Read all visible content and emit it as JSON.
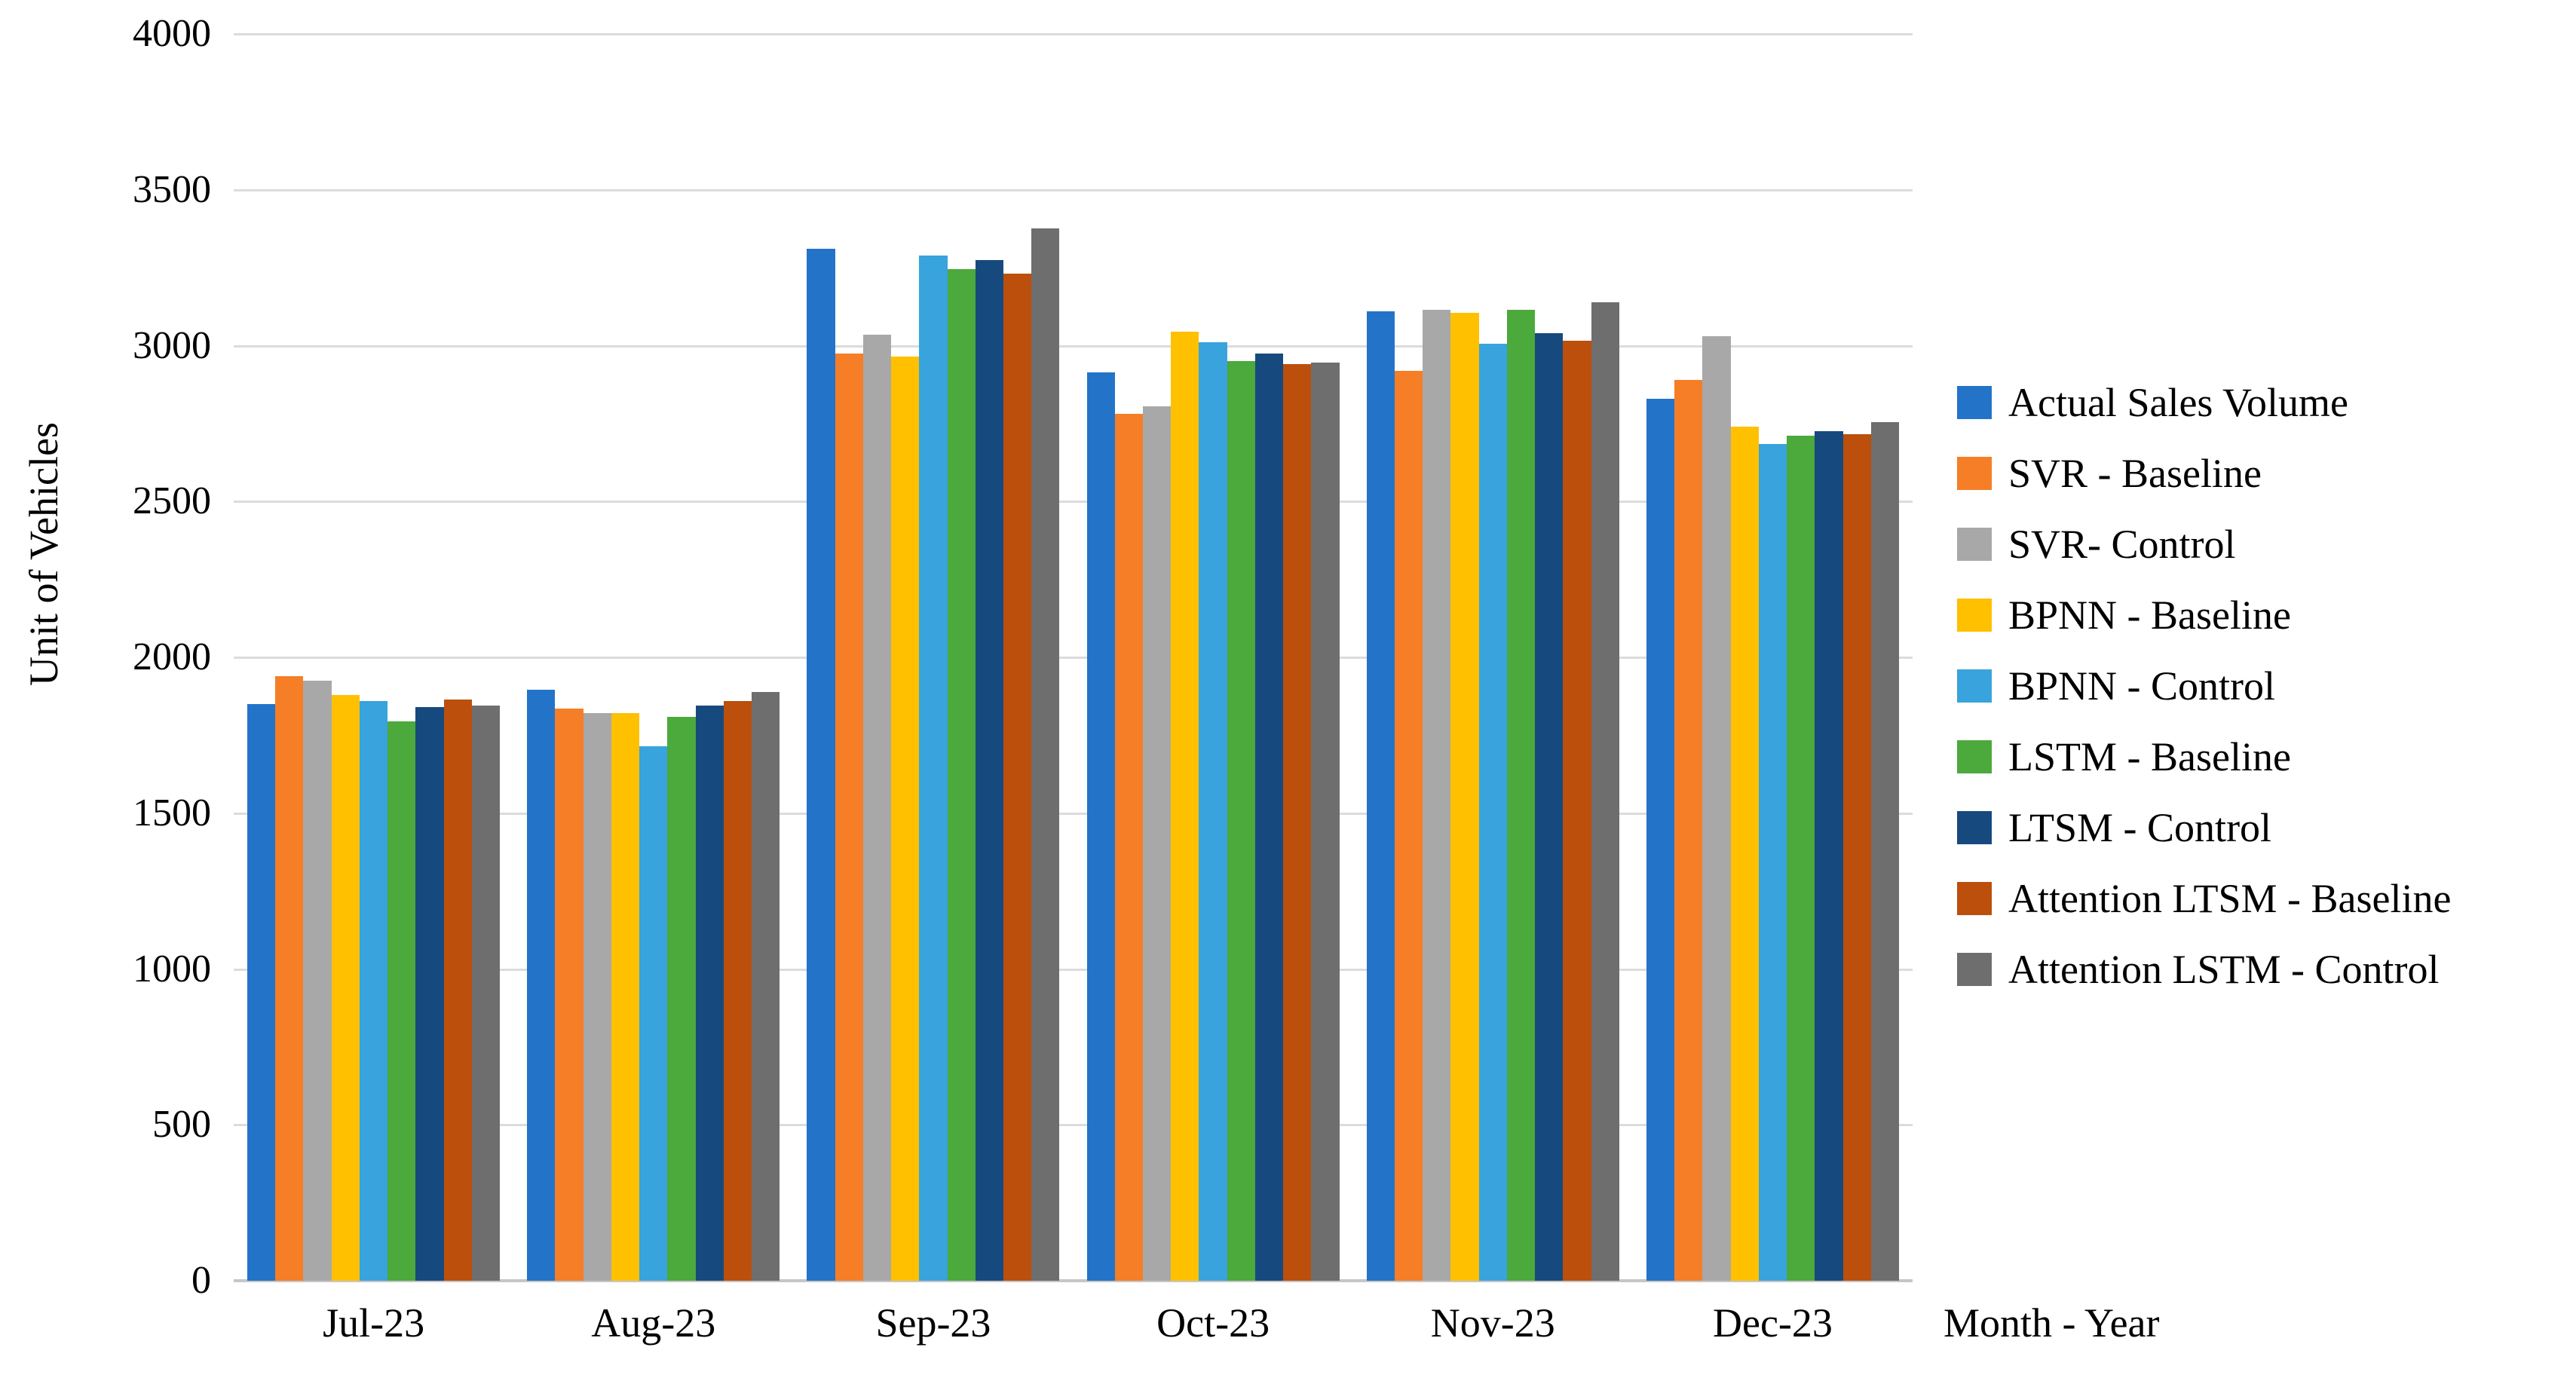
{
  "chart_data": {
    "type": "bar",
    "title": "",
    "xlabel": "Month - Year",
    "ylabel": "Unit of Vehicles",
    "ylim": [
      0,
      4000
    ],
    "yticks": [
      0,
      500,
      1000,
      1500,
      2000,
      2500,
      3000,
      3500,
      4000
    ],
    "grid": "horizontal",
    "legend_position": "right",
    "categories": [
      "Jul-23",
      "Aug-23",
      "Sep-23",
      "Oct-23",
      "Nov-23",
      "Dec-23"
    ],
    "series": [
      {
        "name": "Actual Sales Volume",
        "color": "#2374c9",
        "values": [
          1850,
          1895,
          3310,
          2915,
          3110,
          2830
        ]
      },
      {
        "name": "SVR - Baseline",
        "color": "#f57e27",
        "values": [
          1940,
          1835,
          2975,
          2780,
          2920,
          2890
        ]
      },
      {
        "name": "SVR- Control",
        "color": "#a8a8a8",
        "values": [
          1925,
          1820,
          3035,
          2805,
          3115,
          3030
        ]
      },
      {
        "name": "BPNN - Baseline",
        "color": "#ffc000",
        "values": [
          1880,
          1820,
          2965,
          3045,
          3105,
          2740
        ]
      },
      {
        "name": "BPNN - Control",
        "color": "#38a3dc",
        "values": [
          1860,
          1715,
          3290,
          3010,
          3005,
          2685
        ]
      },
      {
        "name": "LSTM - Baseline",
        "color": "#4ca93b",
        "values": [
          1795,
          1810,
          3245,
          2950,
          3115,
          2710
        ]
      },
      {
        "name": "LTSM - Control",
        "color": "#164a7f",
        "values": [
          1840,
          1845,
          3275,
          2975,
          3040,
          2725
        ]
      },
      {
        "name": "Attention LTSM - Baseline",
        "color": "#bc4f0c",
        "values": [
          1865,
          1860,
          3230,
          2940,
          3015,
          2715
        ]
      },
      {
        "name": "Attention LSTM - Control",
        "color": "#6e6e6e",
        "values": [
          1845,
          1890,
          3375,
          2945,
          3140,
          2755
        ]
      }
    ]
  },
  "style": {
    "gridline_color": "#dcdcdc",
    "baseline_color": "#c6c6c6",
    "text_color": "#000000",
    "background": "#ffffff"
  }
}
